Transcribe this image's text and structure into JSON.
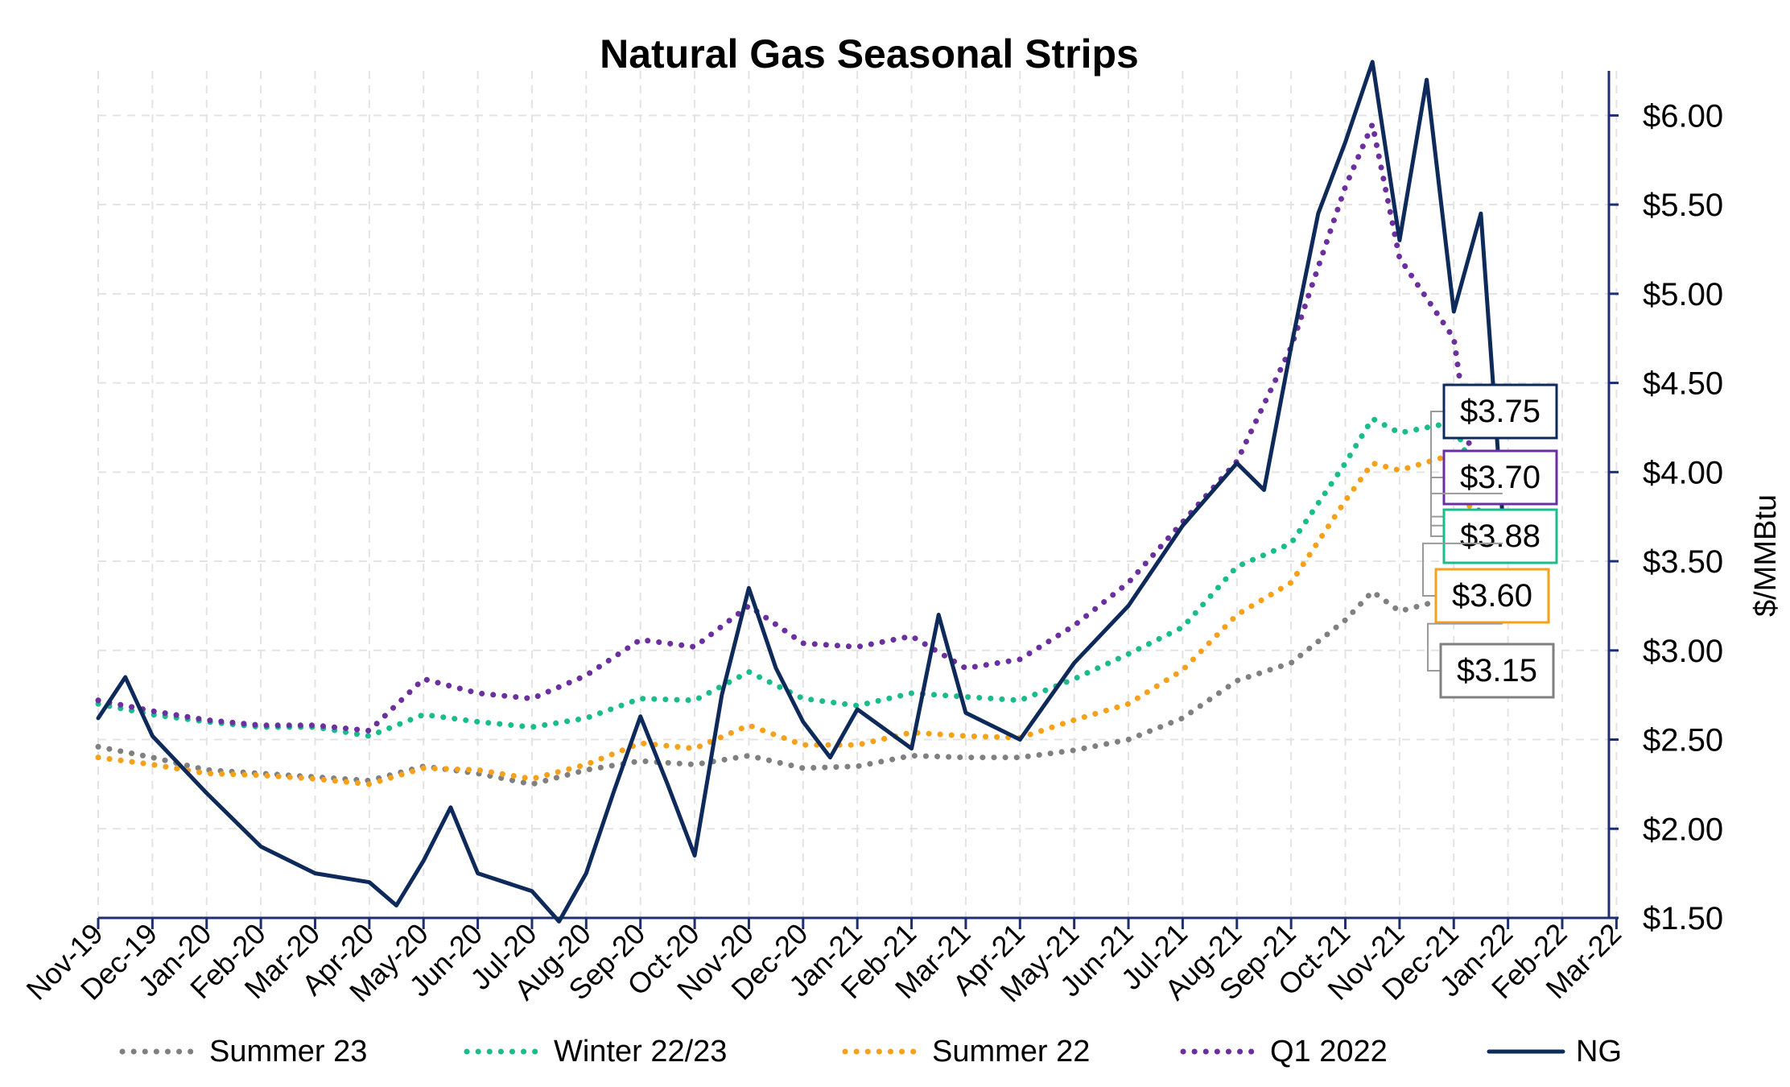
{
  "chart_data": {
    "type": "line",
    "title": "Natural Gas Seasonal Strips",
    "xlabel": "",
    "ylabel": "$/MMBtu",
    "ylim": [
      1.5,
      6.25
    ],
    "y_ticks": [
      1.5,
      2.0,
      2.5,
      3.0,
      3.5,
      4.0,
      4.5,
      5.0,
      5.5,
      6.0
    ],
    "y_tick_labels": [
      "$1.50",
      "$2.00",
      "$2.50",
      "$3.00",
      "$3.50",
      "$4.00",
      "$4.50",
      "$5.00",
      "$5.50",
      "$6.00"
    ],
    "x_tick_labels": [
      "Nov-19",
      "Dec-19",
      "Jan-20",
      "Feb-20",
      "Mar-20",
      "Apr-20",
      "May-20",
      "Jun-20",
      "Jul-20",
      "Aug-20",
      "Sep-20",
      "Oct-20",
      "Nov-20",
      "Dec-20",
      "Jan-21",
      "Feb-21",
      "Mar-21",
      "Apr-21",
      "May-21",
      "Jun-21",
      "Jul-21",
      "Aug-21",
      "Sep-21",
      "Oct-21",
      "Nov-21",
      "Dec-21",
      "Jan-22",
      "Feb-22",
      "Mar-22"
    ],
    "y_axis_side": "right",
    "grid": true,
    "legend_position": "bottom",
    "series": [
      {
        "name": "Summer 23",
        "color": "#808080",
        "style": "dotted",
        "points": [
          [
            "Nov-19",
            2.46
          ],
          [
            "Dec-19",
            2.4
          ],
          [
            "Jan-20",
            2.33
          ],
          [
            "Feb-20",
            2.31
          ],
          [
            "Mar-20",
            2.29
          ],
          [
            "Apr-20",
            2.27
          ],
          [
            "May-20",
            2.35
          ],
          [
            "Jun-20",
            2.31
          ],
          [
            "Jul-20",
            2.25
          ],
          [
            "Aug-20",
            2.33
          ],
          [
            "Sep-20",
            2.38
          ],
          [
            "Oct-20",
            2.36
          ],
          [
            "Nov-20",
            2.41
          ],
          [
            "Dec-20",
            2.34
          ],
          [
            "Jan-21",
            2.35
          ],
          [
            "Feb-21",
            2.41
          ],
          [
            "Mar-21",
            2.4
          ],
          [
            "Apr-21",
            2.4
          ],
          [
            "May-21",
            2.44
          ],
          [
            "Jun-21",
            2.5
          ],
          [
            "Jul-21",
            2.62
          ],
          [
            "Aug-21",
            2.83
          ],
          [
            "Sep-21",
            2.93
          ],
          [
            "Oct-21",
            3.17
          ],
          [
            "Oct-21b",
            3.33
          ],
          [
            "Nov-21",
            3.22
          ],
          [
            "Dec-21",
            3.3
          ],
          [
            "Dec-21b",
            3.15
          ]
        ]
      },
      {
        "name": "Winter 22/23",
        "color": "#1ABC8C",
        "style": "dotted",
        "points": [
          [
            "Nov-19",
            2.7
          ],
          [
            "Dec-19",
            2.64
          ],
          [
            "Jan-20",
            2.6
          ],
          [
            "Feb-20",
            2.57
          ],
          [
            "Mar-20",
            2.57
          ],
          [
            "Apr-20",
            2.52
          ],
          [
            "May-20",
            2.64
          ],
          [
            "Jun-20",
            2.6
          ],
          [
            "Jul-20",
            2.57
          ],
          [
            "Aug-20",
            2.62
          ],
          [
            "Sep-20",
            2.73
          ],
          [
            "Oct-20",
            2.72
          ],
          [
            "Nov-20",
            2.88
          ],
          [
            "Dec-20",
            2.73
          ],
          [
            "Jan-21",
            2.69
          ],
          [
            "Feb-21",
            2.76
          ],
          [
            "Mar-21",
            2.74
          ],
          [
            "Apr-21",
            2.72
          ],
          [
            "May-21",
            2.84
          ],
          [
            "Jun-21",
            2.98
          ],
          [
            "Jul-21",
            3.13
          ],
          [
            "Aug-21",
            3.47
          ],
          [
            "Sep-21",
            3.6
          ],
          [
            "Oct-21",
            4.05
          ],
          [
            "Oct-21b",
            4.3
          ],
          [
            "Nov-21",
            4.22
          ],
          [
            "Dec-21",
            4.28
          ],
          [
            "Dec-21b",
            3.88
          ]
        ]
      },
      {
        "name": "Summer 22",
        "color": "#F7A11A",
        "style": "dotted",
        "points": [
          [
            "Nov-19",
            2.4
          ],
          [
            "Dec-19",
            2.36
          ],
          [
            "Jan-20",
            2.31
          ],
          [
            "Feb-20",
            2.3
          ],
          [
            "Mar-20",
            2.28
          ],
          [
            "Apr-20",
            2.25
          ],
          [
            "May-20",
            2.34
          ],
          [
            "Jun-20",
            2.33
          ],
          [
            "Jul-20",
            2.28
          ],
          [
            "Aug-20",
            2.36
          ],
          [
            "Sep-20",
            2.48
          ],
          [
            "Oct-20",
            2.45
          ],
          [
            "Nov-20",
            2.58
          ],
          [
            "Dec-20",
            2.47
          ],
          [
            "Jan-21",
            2.47
          ],
          [
            "Feb-21",
            2.54
          ],
          [
            "Mar-21",
            2.52
          ],
          [
            "Apr-21",
            2.51
          ],
          [
            "May-21",
            2.61
          ],
          [
            "Jun-21",
            2.7
          ],
          [
            "Jul-21",
            2.89
          ],
          [
            "Aug-21",
            3.2
          ],
          [
            "Sep-21",
            3.38
          ],
          [
            "Oct-21",
            3.84
          ],
          [
            "Oct-21b",
            4.05
          ],
          [
            "Nov-21",
            4.01
          ],
          [
            "Dec-21",
            4.1
          ],
          [
            "Dec-21b",
            3.6
          ]
        ]
      },
      {
        "name": "Q1 2022",
        "color": "#6B2FA0",
        "style": "dotted",
        "points": [
          [
            "Nov-19",
            2.72
          ],
          [
            "Dec-19",
            2.66
          ],
          [
            "Jan-20",
            2.61
          ],
          [
            "Feb-20",
            2.58
          ],
          [
            "Mar-20",
            2.58
          ],
          [
            "Apr-20",
            2.55
          ],
          [
            "May-20",
            2.84
          ],
          [
            "Jun-20",
            2.76
          ],
          [
            "Jul-20",
            2.73
          ],
          [
            "Aug-20",
            2.86
          ],
          [
            "Sep-20",
            3.06
          ],
          [
            "Oct-20",
            3.02
          ],
          [
            "Nov-20",
            3.25
          ],
          [
            "Dec-20",
            3.04
          ],
          [
            "Jan-21",
            3.02
          ],
          [
            "Feb-21",
            3.08
          ],
          [
            "Mar-21",
            2.9
          ],
          [
            "Apr-21",
            2.95
          ],
          [
            "May-21",
            3.14
          ],
          [
            "Jun-21",
            3.38
          ],
          [
            "Jul-21",
            3.72
          ],
          [
            "Aug-21",
            4.06
          ],
          [
            "Sep-21",
            4.7
          ],
          [
            "Oct-21",
            5.6
          ],
          [
            "Oct-21b",
            5.95
          ],
          [
            "Nov-21",
            5.2
          ],
          [
            "Dec-21",
            4.75
          ],
          [
            "Dec-21b",
            3.7
          ]
        ]
      },
      {
        "name": "NG",
        "color": "#0E2A5A",
        "style": "solid",
        "points": [
          [
            "Nov-19",
            2.62
          ],
          [
            "Nov-19b",
            2.85
          ],
          [
            "Dec-19",
            2.52
          ],
          [
            "Jan-20",
            2.2
          ],
          [
            "Feb-20",
            1.9
          ],
          [
            "Mar-20",
            1.75
          ],
          [
            "Apr-20",
            1.7
          ],
          [
            "Apr-20b",
            1.57
          ],
          [
            "May-20",
            1.82
          ],
          [
            "May-20b",
            2.12
          ],
          [
            "Jun-20",
            1.75
          ],
          [
            "Jul-20",
            1.65
          ],
          [
            "Jul-20b",
            1.48
          ],
          [
            "Aug-20",
            1.75
          ],
          [
            "Aug-20b",
            2.2
          ],
          [
            "Sep-20",
            2.63
          ],
          [
            "Sep-20b",
            2.25
          ],
          [
            "Oct-20",
            1.85
          ],
          [
            "Oct-20b",
            2.75
          ],
          [
            "Nov-20",
            3.35
          ],
          [
            "Nov-20b",
            2.9
          ],
          [
            "Dec-20",
            2.6
          ],
          [
            "Dec-20b",
            2.4
          ],
          [
            "Jan-21",
            2.67
          ],
          [
            "Feb-21",
            2.45
          ],
          [
            "Feb-21b",
            3.2
          ],
          [
            "Mar-21",
            2.65
          ],
          [
            "Apr-21",
            2.5
          ],
          [
            "May-21",
            2.93
          ],
          [
            "Jun-21",
            3.25
          ],
          [
            "Jul-21",
            3.7
          ],
          [
            "Aug-21",
            4.05
          ],
          [
            "Aug-21b",
            3.9
          ],
          [
            "Sep-21",
            4.7
          ],
          [
            "Sep-21b",
            5.45
          ],
          [
            "Oct-21",
            5.85
          ],
          [
            "Oct-21b",
            6.3
          ],
          [
            "Nov-21",
            5.3
          ],
          [
            "Nov-21b",
            6.2
          ],
          [
            "Dec-21",
            4.9
          ],
          [
            "Dec-21b",
            5.45
          ],
          [
            "Dec-21c",
            3.75
          ]
        ]
      }
    ],
    "end_labels": [
      "$3.75",
      "$3.70",
      "$3.88",
      "$3.60",
      "$3.15"
    ]
  }
}
